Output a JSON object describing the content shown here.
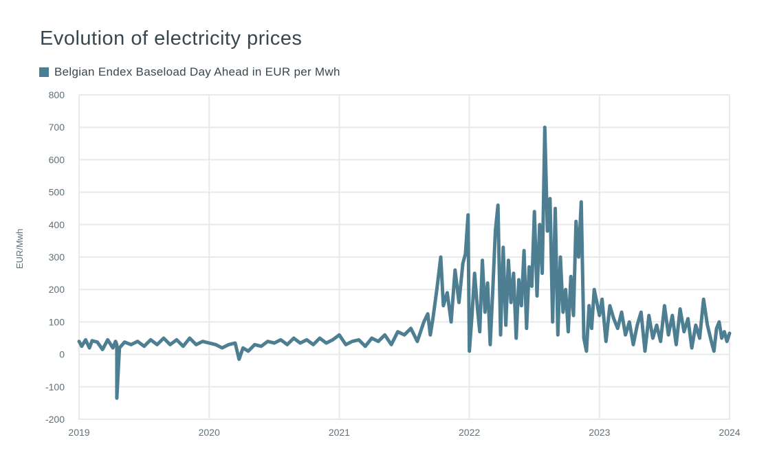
{
  "chart_data": {
    "type": "line",
    "title": "Evolution of electricity prices",
    "ylabel": "EUR/Mwh",
    "xlabel": "",
    "ylim": [
      -200,
      800
    ],
    "yticks": [
      800,
      700,
      600,
      500,
      400,
      300,
      200,
      100,
      0,
      -100,
      -200
    ],
    "xlim": [
      2019,
      2024
    ],
    "xticks": [
      "2019",
      "2020",
      "2021",
      "2022",
      "2023",
      "2024"
    ],
    "grid": true,
    "legend_position": "top-left",
    "series": [
      {
        "name": "Belgian Endex Baseload Day Ahead in EUR per Mwh",
        "color": "#4d7e92",
        "x": [
          2019.0,
          2019.02,
          2019.05,
          2019.08,
          2019.1,
          2019.14,
          2019.18,
          2019.22,
          2019.26,
          2019.28,
          2019.29,
          2019.29,
          2019.31,
          2019.35,
          2019.4,
          2019.45,
          2019.5,
          2019.55,
          2019.6,
          2019.65,
          2019.7,
          2019.75,
          2019.8,
          2019.85,
          2019.9,
          2019.95,
          2020.0,
          2020.05,
          2020.1,
          2020.15,
          2020.2,
          2020.23,
          2020.26,
          2020.3,
          2020.35,
          2020.4,
          2020.45,
          2020.5,
          2020.55,
          2020.6,
          2020.65,
          2020.7,
          2020.75,
          2020.8,
          2020.85,
          2020.9,
          2020.95,
          2021.0,
          2021.05,
          2021.1,
          2021.15,
          2021.2,
          2021.25,
          2021.3,
          2021.35,
          2021.4,
          2021.45,
          2021.5,
          2021.55,
          2021.6,
          2021.65,
          2021.68,
          2021.7,
          2021.72,
          2021.75,
          2021.78,
          2021.8,
          2021.83,
          2021.86,
          2021.89,
          2021.92,
          2021.95,
          2021.97,
          2021.99,
          2022.0,
          2022.02,
          2022.04,
          2022.06,
          2022.08,
          2022.1,
          2022.12,
          2022.14,
          2022.16,
          2022.18,
          2022.2,
          2022.22,
          2022.24,
          2022.26,
          2022.28,
          2022.3,
          2022.32,
          2022.34,
          2022.36,
          2022.38,
          2022.4,
          2022.42,
          2022.44,
          2022.46,
          2022.48,
          2022.5,
          2022.52,
          2022.54,
          2022.56,
          2022.58,
          2022.6,
          2022.62,
          2022.64,
          2022.66,
          2022.68,
          2022.7,
          2022.72,
          2022.74,
          2022.76,
          2022.78,
          2022.8,
          2022.82,
          2022.84,
          2022.86,
          2022.88,
          2022.9,
          2022.92,
          2022.94,
          2022.96,
          2022.98,
          2023.0,
          2023.02,
          2023.05,
          2023.08,
          2023.11,
          2023.14,
          2023.17,
          2023.2,
          2023.23,
          2023.26,
          2023.29,
          2023.32,
          2023.35,
          2023.38,
          2023.41,
          2023.44,
          2023.47,
          2023.5,
          2023.53,
          2023.56,
          2023.59,
          2023.62,
          2023.65,
          2023.68,
          2023.71,
          2023.74,
          2023.77,
          2023.8,
          2023.83,
          2023.86,
          2023.88,
          2023.9,
          2023.92,
          2023.94,
          2023.96,
          2023.98,
          2024.0
        ],
        "values": [
          40,
          25,
          45,
          20,
          42,
          38,
          15,
          45,
          20,
          40,
          30,
          -135,
          20,
          38,
          30,
          40,
          25,
          45,
          30,
          50,
          30,
          45,
          25,
          50,
          30,
          40,
          35,
          30,
          20,
          30,
          35,
          -15,
          20,
          10,
          30,
          25,
          40,
          35,
          45,
          30,
          50,
          35,
          45,
          30,
          50,
          35,
          45,
          60,
          30,
          40,
          45,
          25,
          50,
          40,
          60,
          30,
          70,
          60,
          80,
          40,
          100,
          125,
          60,
          110,
          200,
          300,
          150,
          190,
          100,
          260,
          160,
          280,
          310,
          430,
          10,
          120,
          250,
          150,
          70,
          290,
          130,
          220,
          30,
          200,
          380,
          460,
          60,
          330,
          90,
          290,
          160,
          250,
          50,
          230,
          150,
          320,
          80,
          270,
          210,
          440,
          180,
          400,
          250,
          700,
          380,
          480,
          100,
          450,
          60,
          300,
          130,
          200,
          70,
          240,
          120,
          410,
          300,
          470,
          50,
          10,
          150,
          80,
          200,
          160,
          120,
          170,
          40,
          150,
          110,
          80,
          130,
          60,
          100,
          30,
          90,
          130,
          10,
          120,
          50,
          90,
          40,
          150,
          60,
          120,
          30,
          140,
          70,
          110,
          20,
          90,
          50,
          170,
          90,
          40,
          10,
          80,
          100,
          50,
          70,
          40,
          65
        ]
      }
    ]
  }
}
